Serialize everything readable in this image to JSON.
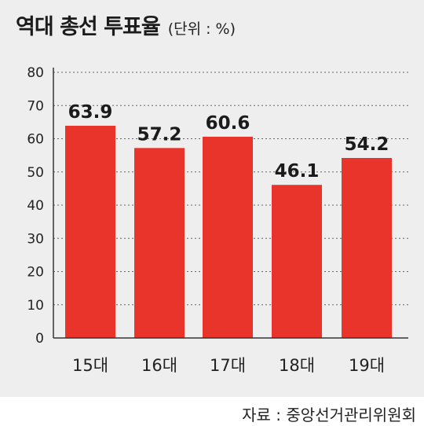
{
  "title": "역대 총선 투표율",
  "unit": "(단위 : %)",
  "source": "자료 : 중앙선거관리위원회",
  "colors": {
    "bar": "#e8342a",
    "background": "#eeeeee",
    "grid": "#666666",
    "text": "#1b1b1b"
  },
  "chart_data": {
    "type": "bar",
    "categories": [
      "15대",
      "16대",
      "17대",
      "18대",
      "19대"
    ],
    "values": [
      63.9,
      57.2,
      60.6,
      46.1,
      54.2
    ],
    "data_labels": [
      "63.9",
      "57.2",
      "60.6",
      "46.1",
      "54.2"
    ],
    "ylim": [
      0,
      80
    ],
    "yticks": [
      0,
      10,
      20,
      30,
      40,
      50,
      60,
      70,
      80
    ],
    "grid": "dashed horizontal",
    "title": "역대 총선 투표율",
    "xlabel": "",
    "ylabel": ""
  }
}
